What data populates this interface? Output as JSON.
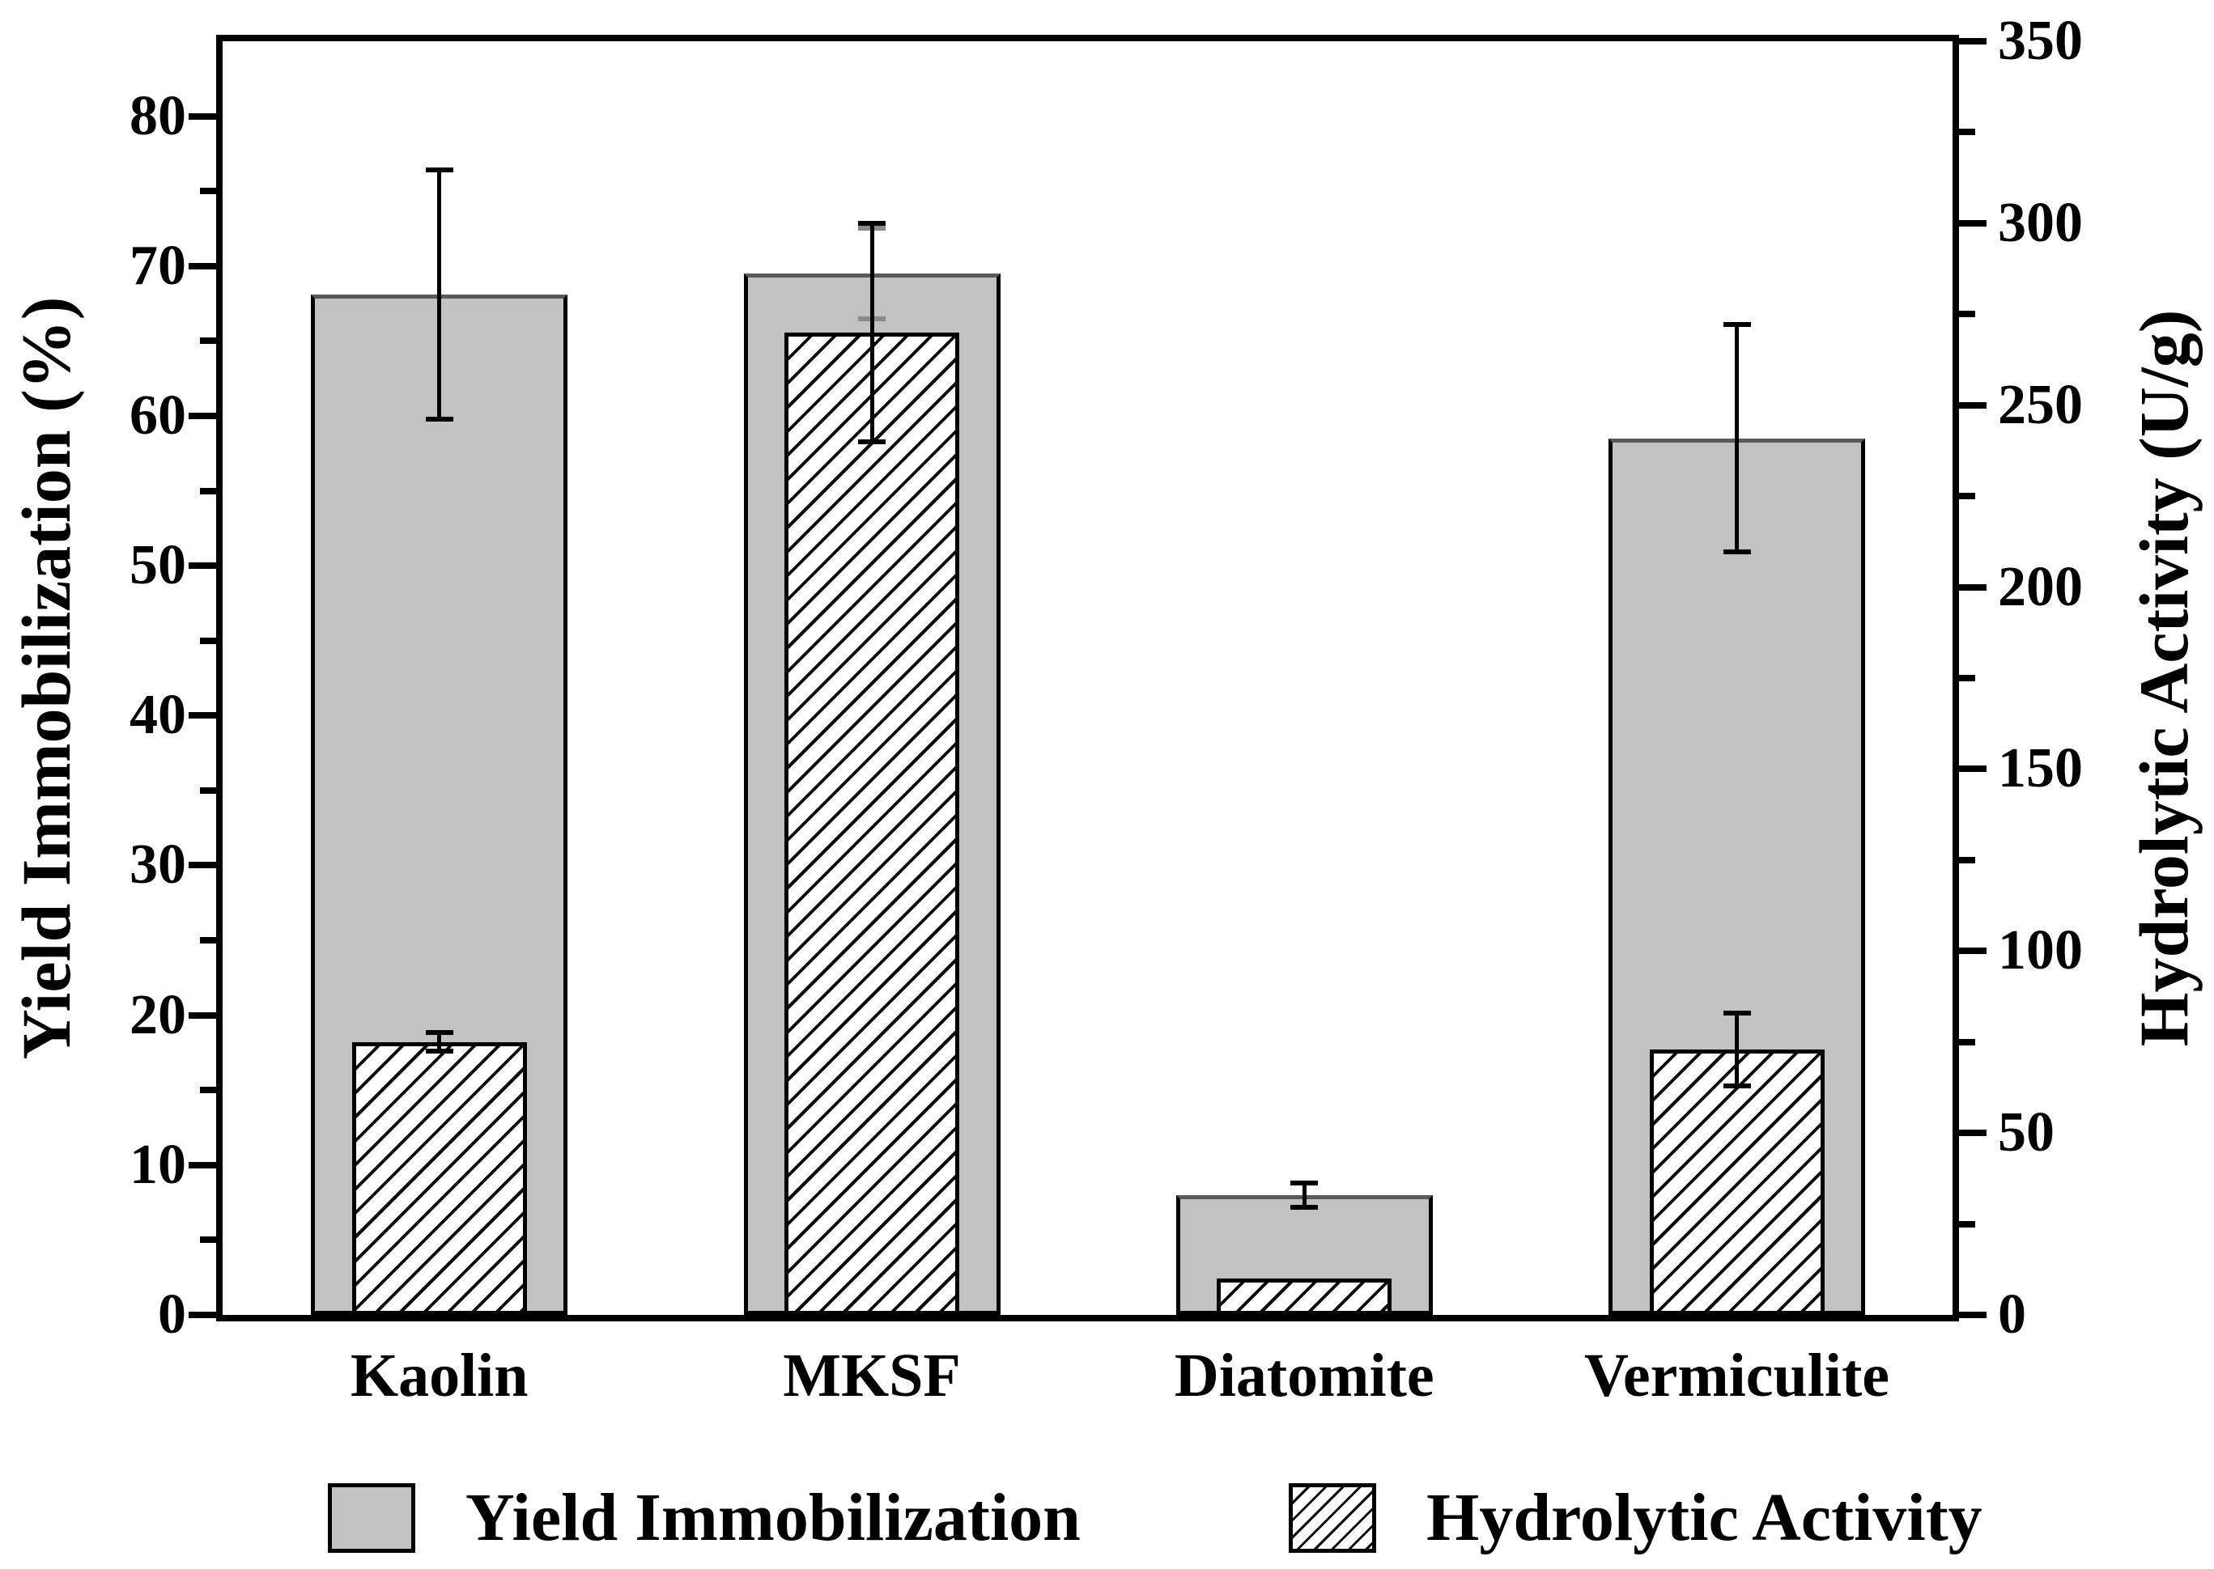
{
  "colors": {
    "background": "#ffffff",
    "frame": "#000000",
    "solid_bar_fill": "#c2c2c2",
    "bar_border": "#000000",
    "hatch_line": "#0a0a0a",
    "default_error": "#000000",
    "mksf_yield_error": "#8a8a8a"
  },
  "chart_data": {
    "type": "bar",
    "categories": [
      "Kaolin",
      "MKSF",
      "Diatomite",
      "Vermiculite"
    ],
    "series": [
      {
        "name": "Yield Immobilization",
        "axis": "left",
        "unit": "%",
        "style": "solid-gray",
        "values": [
          68.1,
          69.5,
          8.0,
          58.5
        ],
        "errors": [
          8.3,
          3.0,
          0.8,
          7.6
        ],
        "error_colors": [
          "#000000",
          "#8a8a8a",
          "#000000",
          "#000000"
        ]
      },
      {
        "name": "Hydrolytic Activity",
        "axis": "right",
        "unit": "U/g",
        "style": "hatched",
        "values": [
          75,
          270,
          10,
          73
        ],
        "errors": [
          2.5,
          30,
          0,
          10
        ],
        "error_colors": [
          "#000000",
          "#000000",
          "#000000",
          "#000000"
        ]
      }
    ],
    "left_axis": {
      "label": "Yield Immobilization (%)",
      "ticks": [
        0,
        10,
        20,
        30,
        40,
        50,
        60,
        70,
        80
      ],
      "minor_ticks": [
        5,
        15,
        25,
        35,
        45,
        55,
        65,
        75
      ],
      "range": [
        0,
        85
      ]
    },
    "right_axis": {
      "label": "Hydrolytic Activity (U/g)",
      "ticks": [
        0,
        50,
        100,
        150,
        200,
        250,
        300,
        350
      ],
      "minor_ticks": [
        25,
        75,
        125,
        175,
        225,
        275,
        325
      ],
      "range": [
        0,
        350
      ]
    },
    "grid": false,
    "legend_position": "bottom"
  },
  "legend": {
    "items": [
      {
        "label": "Yield Immobilization",
        "swatch": "solid-gray"
      },
      {
        "label": "Hydrolytic Activity",
        "swatch": "hatched"
      }
    ]
  }
}
